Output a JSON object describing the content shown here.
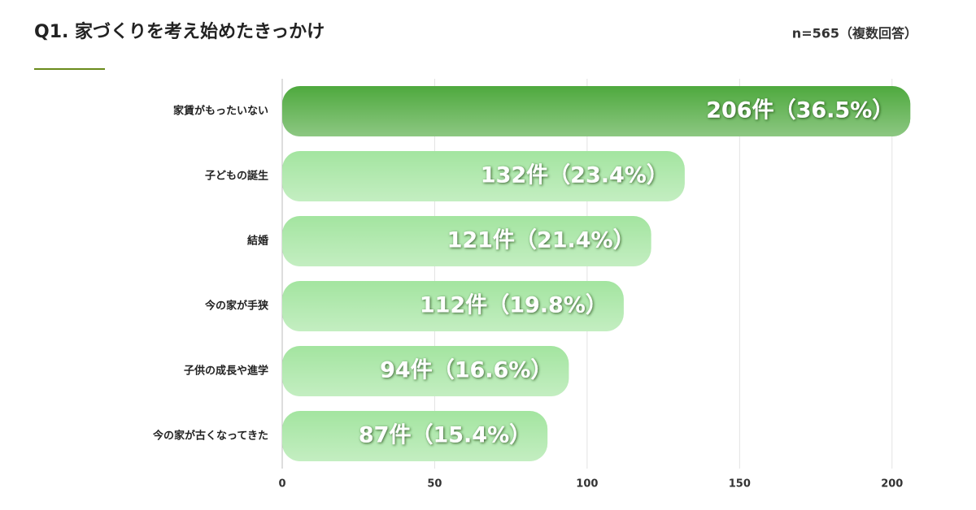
{
  "chart_data": {
    "type": "bar",
    "orientation": "horizontal",
    "title": "Q1. 家づくりを考え始めたきっかけ",
    "subtitle": "n=565（複数回答）",
    "categories": [
      "家賃がもったいない",
      "子どもの誕生",
      "結婚",
      "今の家が手狭",
      "子供の成長や進学",
      "今の家が古くなってきた"
    ],
    "values": [
      206,
      132,
      121,
      112,
      94,
      87
    ],
    "value_labels": [
      "206件（36.5%）",
      "132件（23.4%）",
      "121件（21.4%）",
      "112件（19.8%）",
      "94件（16.6%）",
      "87件（15.4%）"
    ],
    "colors": [
      "#2f9a1c",
      "#93e08f",
      "#93e08f",
      "#93e08f",
      "#93e08f",
      "#93e08f"
    ],
    "xlim": [
      0,
      211
    ],
    "xticks": [
      0,
      50,
      100,
      150,
      200
    ],
    "grid": true
  }
}
